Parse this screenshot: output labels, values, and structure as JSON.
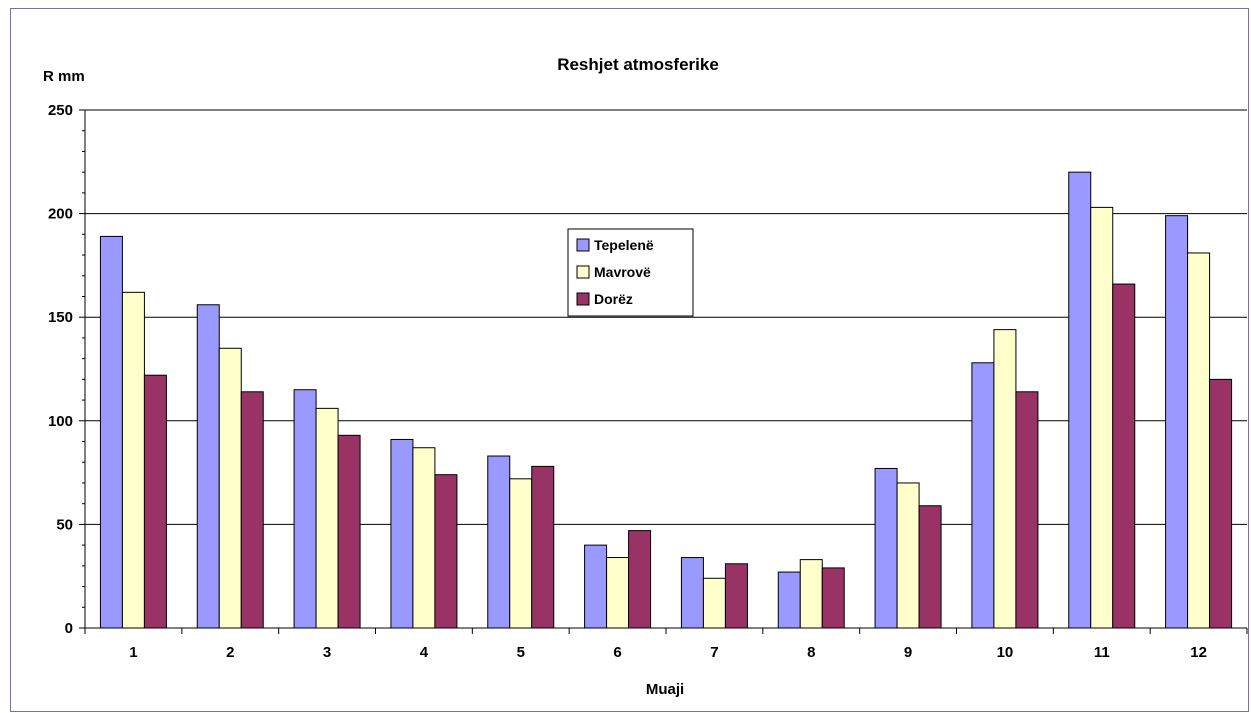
{
  "chart_data": {
    "type": "bar",
    "title": "Reshjet atmosferike",
    "ylabel": "R mm",
    "xlabel": "Muaji",
    "categories": [
      "1",
      "2",
      "3",
      "4",
      "5",
      "6",
      "7",
      "8",
      "9",
      "10",
      "11",
      "12"
    ],
    "ylim": [
      0,
      250
    ],
    "yticks": [
      "0",
      "50",
      "100",
      "150",
      "200",
      "250"
    ],
    "grid": true,
    "legend_position": "center",
    "series": [
      {
        "name": "Tepelenë",
        "color": "#9999ff",
        "values": [
          189,
          156,
          115,
          91,
          83,
          40,
          34,
          27,
          77,
          128,
          220,
          199
        ]
      },
      {
        "name": "Mavrovë",
        "color": "#ffffcc",
        "values": [
          162,
          135,
          106,
          87,
          72,
          34,
          24,
          33,
          70,
          144,
          203,
          181
        ]
      },
      {
        "name": "Dorëz",
        "color": "#993366",
        "values": [
          122,
          114,
          93,
          74,
          78,
          47,
          31,
          29,
          59,
          114,
          166,
          120
        ]
      }
    ]
  }
}
